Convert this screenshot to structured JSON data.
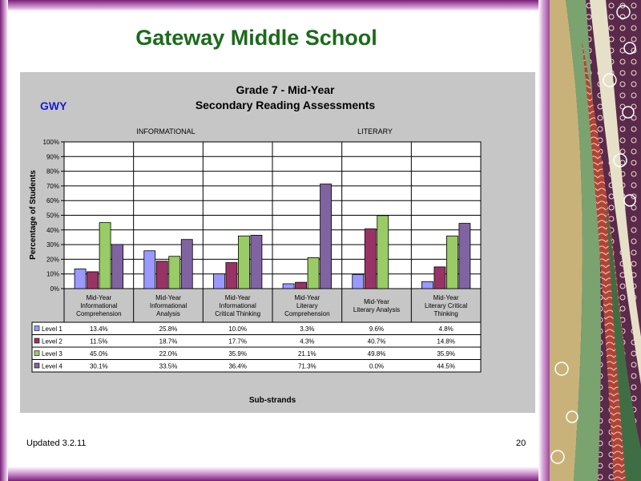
{
  "slide": {
    "title": "Gateway Middle School",
    "updated": "Updated  3.2.11",
    "page_number": "20"
  },
  "chart_data": {
    "type": "bar",
    "school_code": "GWY",
    "title": "Grade 7 - Mid-Year",
    "subtitle": "Secondary Reading Assessments",
    "group_labels": [
      "INFORMATIONAL",
      "LITERARY"
    ],
    "xlabel": "Sub-strands",
    "ylabel": "Percentage of Students",
    "ylim": [
      0,
      100
    ],
    "y_ticks": [
      "0%",
      "10%",
      "20%",
      "30%",
      "40%",
      "50%",
      "60%",
      "70%",
      "80%",
      "90%",
      "100%"
    ],
    "grid": true,
    "legend": "table-left",
    "categories": [
      [
        "Mid-Year",
        "Informational",
        "Comprehension"
      ],
      [
        "Mid-Year",
        "Informational",
        "Analysis"
      ],
      [
        "Mid-Year",
        "Informational",
        "Critical Thinking"
      ],
      [
        "Mid-Year",
        "Literary",
        "Comprehension"
      ],
      [
        "Mid-Year",
        "Literary Analysis"
      ],
      [
        "Mid-Year",
        "Literary Critical",
        "Thinking"
      ]
    ],
    "series": [
      {
        "name": "Level 1",
        "color": "#9999ff",
        "values": [
          13.4,
          25.8,
          10.0,
          3.3,
          9.6,
          4.8
        ],
        "labels": [
          "13.4%",
          "25.8%",
          "10.0%",
          "3.3%",
          "9.6%",
          "4.8%"
        ]
      },
      {
        "name": "Level 2",
        "color": "#993366",
        "values": [
          11.5,
          18.7,
          17.7,
          4.3,
          40.7,
          14.8
        ],
        "labels": [
          "11.5%",
          "18.7%",
          "17.7%",
          "4.3%",
          "40.7%",
          "14.8%"
        ]
      },
      {
        "name": "Level 3",
        "color": "#99cc66",
        "values": [
          45.0,
          22.0,
          35.9,
          21.1,
          49.8,
          35.9
        ],
        "labels": [
          "45.0%",
          "22.0%",
          "35.9%",
          "21.1%",
          "49.8%",
          "35.9%"
        ]
      },
      {
        "name": "Level 4",
        "color": "#8064a2",
        "values": [
          30.1,
          33.5,
          36.4,
          71.3,
          0.0,
          44.5
        ],
        "labels": [
          "30.1%",
          "33.5%",
          "36.4%",
          "71.3%",
          "0.0%",
          "44.5%"
        ]
      }
    ]
  }
}
